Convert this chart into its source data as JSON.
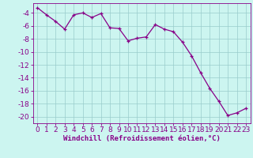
{
  "x": [
    0,
    1,
    2,
    3,
    4,
    5,
    6,
    7,
    8,
    9,
    10,
    11,
    12,
    13,
    14,
    15,
    16,
    17,
    18,
    19,
    20,
    21,
    22,
    23
  ],
  "y": [
    -3.2,
    -4.3,
    -5.3,
    -6.5,
    -4.3,
    -4.0,
    -4.7,
    -4.1,
    -6.3,
    -6.4,
    -8.3,
    -7.9,
    -7.7,
    -5.8,
    -6.5,
    -6.9,
    -8.5,
    -10.6,
    -13.2,
    -15.6,
    -17.6,
    -19.8,
    -19.4,
    -18.7
  ],
  "line_color": "#880088",
  "marker_color": "#880088",
  "bg_color": "#ccf5f0",
  "grid_color": "#99cccc",
  "xlabel": "Windchill (Refroidissement éolien,°C)",
  "xlabel_color": "#880088",
  "xlim": [
    -0.5,
    23.5
  ],
  "ylim": [
    -21,
    -2.5
  ],
  "yticks": [
    -4,
    -6,
    -8,
    -10,
    -12,
    -14,
    -16,
    -18,
    -20
  ],
  "xticks": [
    0,
    1,
    2,
    3,
    4,
    5,
    6,
    7,
    8,
    9,
    10,
    11,
    12,
    13,
    14,
    15,
    16,
    17,
    18,
    19,
    20,
    21,
    22,
    23
  ],
  "tick_color": "#880088",
  "font_size": 6.5
}
